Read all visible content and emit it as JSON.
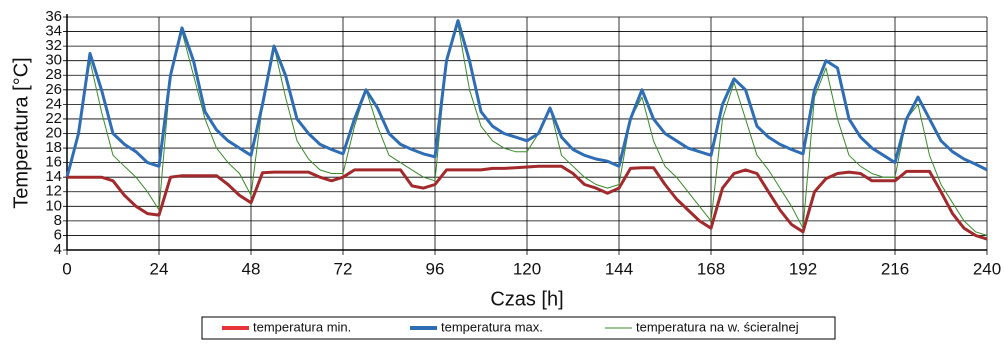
{
  "chart_data": {
    "type": "line",
    "xlabel": "Czas [h]",
    "ylabel": "Temperatura [°C]",
    "x": [
      0,
      3,
      6,
      9,
      12,
      15,
      18,
      21,
      24,
      27,
      30,
      33,
      36,
      39,
      42,
      45,
      48,
      51,
      54,
      57,
      60,
      63,
      66,
      69,
      72,
      75,
      78,
      81,
      84,
      87,
      90,
      93,
      96,
      99,
      102,
      105,
      108,
      111,
      114,
      117,
      120,
      123,
      126,
      129,
      132,
      135,
      138,
      141,
      144,
      147,
      150,
      153,
      156,
      159,
      162,
      165,
      168,
      171,
      174,
      177,
      180,
      183,
      186,
      189,
      192,
      195,
      198,
      201,
      204,
      207,
      210,
      213,
      216,
      219,
      222,
      225,
      228,
      231,
      234,
      237,
      240
    ],
    "series": [
      {
        "name": "temperatura min.",
        "color": "#a32a2c",
        "legend_color": "#e8353a",
        "width": 3,
        "values": [
          14,
          14,
          14,
          14,
          13.5,
          11.5,
          10,
          9,
          8.8,
          14,
          14.2,
          14.2,
          14.2,
          14.2,
          13,
          11.5,
          10.5,
          14.6,
          14.7,
          14.7,
          14.7,
          14.7,
          14,
          13.5,
          14,
          15,
          15,
          15,
          15,
          15,
          12.8,
          12.5,
          13,
          15,
          15,
          15,
          15,
          15.2,
          15.2,
          15.3,
          15.4,
          15.5,
          15.5,
          15.5,
          14.5,
          13,
          12.5,
          11.8,
          12.5,
          15.2,
          15.3,
          15.3,
          13,
          11,
          9.5,
          8,
          7,
          12.5,
          14.5,
          15,
          14.5,
          12,
          9.5,
          7.5,
          6.5,
          12,
          13.8,
          14.5,
          14.7,
          14.5,
          13.5,
          13.5,
          13.5,
          14.8,
          14.8,
          14.8,
          12,
          9,
          7,
          6,
          5.5
        ]
      },
      {
        "name": "temperatura max.",
        "color": "#2f6db5",
        "legend_color": "#2f6db5",
        "width": 3,
        "values": [
          14,
          20,
          31,
          26,
          20,
          18.5,
          17.5,
          16,
          15.5,
          28,
          34.5,
          30,
          23,
          20.5,
          19,
          18,
          17,
          24,
          32,
          28,
          22,
          20,
          18.5,
          17.8,
          17.2,
          22,
          26,
          23.5,
          20,
          18.5,
          17.8,
          17.2,
          16.8,
          30,
          35.5,
          30,
          23,
          21,
          20,
          19.5,
          19,
          20,
          23.5,
          19.5,
          17.8,
          17,
          16.5,
          16.2,
          15.5,
          22,
          26,
          22,
          20,
          19,
          18,
          17.5,
          17,
          24,
          27.5,
          26,
          21,
          19.5,
          18.5,
          17.8,
          17.2,
          26,
          30,
          29,
          22,
          19.5,
          18,
          17,
          16,
          22,
          25,
          22,
          19,
          17.5,
          16.5,
          15.8,
          15
        ]
      },
      {
        "name": "temperatura na w. ścieralnej",
        "color": "#3a8a2a",
        "legend_color": "#3a8a2a",
        "width": 1,
        "values": [
          14,
          20,
          30,
          23,
          17,
          15.5,
          14,
          12,
          9.5,
          28,
          34,
          28,
          22,
          18,
          16,
          14.5,
          11.5,
          24,
          32,
          25,
          19,
          16.5,
          15,
          14.5,
          14.5,
          21,
          26,
          21,
          17,
          16,
          15,
          14,
          13.5,
          30,
          35,
          26,
          21,
          19,
          18,
          17.5,
          17.5,
          20,
          23.5,
          17,
          15.5,
          14,
          13,
          12.5,
          13,
          22,
          25,
          19,
          15.5,
          14,
          12,
          10,
          8,
          22,
          27,
          22,
          17,
          15,
          12.5,
          10,
          7,
          25,
          29,
          22,
          17,
          15.5,
          14.5,
          14,
          14,
          22,
          24,
          17,
          13,
          10.5,
          8,
          6.5,
          6
        ]
      }
    ],
    "xlim": [
      0,
      240
    ],
    "xticks": [
      0,
      24,
      48,
      72,
      96,
      120,
      144,
      168,
      192,
      216,
      240
    ],
    "ylim": [
      4,
      36
    ],
    "yticks": [
      4,
      6,
      8,
      10,
      12,
      14,
      16,
      18,
      20,
      22,
      24,
      26,
      28,
      30,
      32,
      34,
      36
    ],
    "grid": true,
    "legend": "bottom"
  }
}
